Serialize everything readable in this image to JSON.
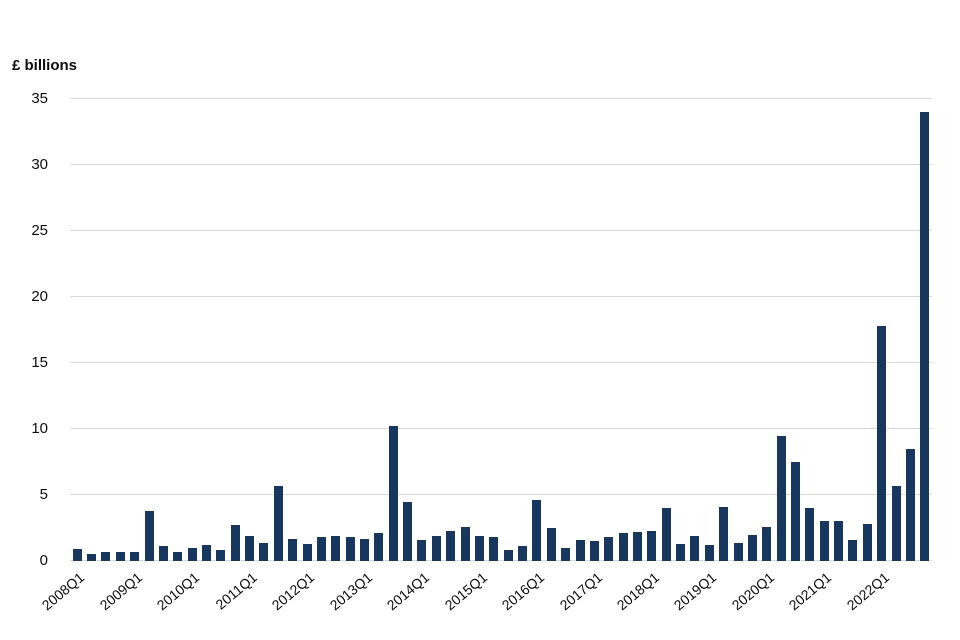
{
  "chart_data": {
    "type": "bar",
    "title": "",
    "ylabel": "£ billions",
    "xlabel": "",
    "ylim": [
      0,
      35
    ],
    "yticks": [
      0,
      5,
      10,
      15,
      20,
      25,
      30,
      35
    ],
    "grid": "horizontal",
    "legend_position": "none",
    "bar_color": "#17375E",
    "gridline_color": "#d9d9d9",
    "x_tick_every": 4,
    "x_tick_labels": [
      "2008Q1",
      "2009Q1",
      "2010Q1",
      "2011Q1",
      "2012Q1",
      "2013Q1",
      "2014Q1",
      "2015Q1",
      "2016Q1",
      "2017Q1",
      "2018Q1",
      "2019Q1",
      "2020Q1",
      "2021Q1",
      "2022Q1"
    ],
    "categories": [
      "2008Q1",
      "2008Q2",
      "2008Q3",
      "2008Q4",
      "2009Q1",
      "2009Q2",
      "2009Q3",
      "2009Q4",
      "2010Q1",
      "2010Q2",
      "2010Q3",
      "2010Q4",
      "2011Q1",
      "2011Q2",
      "2011Q3",
      "2011Q4",
      "2012Q1",
      "2012Q2",
      "2012Q3",
      "2012Q4",
      "2013Q1",
      "2013Q2",
      "2013Q3",
      "2013Q4",
      "2014Q1",
      "2014Q2",
      "2014Q3",
      "2014Q4",
      "2015Q1",
      "2015Q2",
      "2015Q3",
      "2015Q4",
      "2016Q1",
      "2016Q2",
      "2016Q3",
      "2016Q4",
      "2017Q1",
      "2017Q2",
      "2017Q3",
      "2017Q4",
      "2018Q1",
      "2018Q2",
      "2018Q3",
      "2018Q4",
      "2019Q1",
      "2019Q2",
      "2019Q3",
      "2019Q4",
      "2020Q1",
      "2020Q2",
      "2020Q3",
      "2020Q4",
      "2021Q1",
      "2021Q2",
      "2021Q3",
      "2021Q4",
      "2022Q1",
      "2022Q2",
      "2022Q3",
      "2022Q4"
    ],
    "values": [
      0.9,
      0.5,
      0.7,
      0.7,
      0.7,
      3.8,
      1.1,
      0.7,
      1.0,
      1.2,
      0.8,
      2.7,
      1.9,
      1.4,
      5.7,
      1.7,
      1.3,
      1.8,
      1.9,
      1.8,
      1.7,
      2.1,
      10.2,
      4.5,
      1.6,
      1.9,
      2.3,
      2.6,
      1.9,
      1.8,
      0.8,
      1.1,
      4.6,
      2.5,
      1.0,
      1.6,
      1.5,
      1.8,
      2.1,
      2.2,
      2.3,
      4.0,
      1.3,
      1.9,
      1.2,
      4.1,
      1.4,
      2.0,
      2.6,
      9.5,
      7.5,
      4.0,
      3.0,
      3.0,
      1.6,
      2.8,
      17.8,
      5.7,
      8.5,
      34.0
    ]
  }
}
